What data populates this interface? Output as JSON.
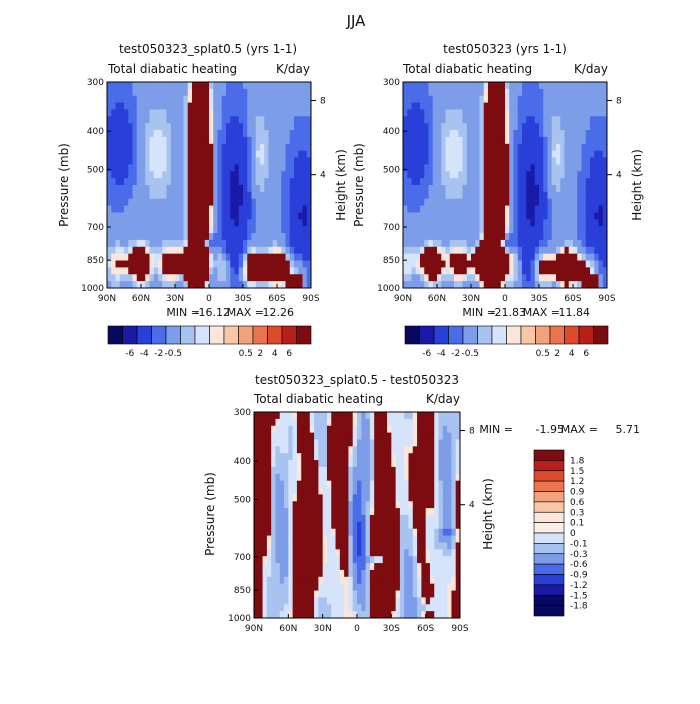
{
  "title": "JJA",
  "colors": {
    "neg": [
      "#08085e",
      "#1a1aa8",
      "#2a3fd8",
      "#4a6ce8",
      "#7d9de8",
      "#a9c3f1",
      "#d6e4fb"
    ],
    "pos": [
      "#fbe7da",
      "#f7c7a8",
      "#f1a27c",
      "#ea744d",
      "#db4b2c",
      "#b81f1a",
      "#7c0c10"
    ],
    "neutral": "#fbe7da",
    "background": "#ffffff"
  },
  "chart_data": [
    {
      "type": "heatmap",
      "title": "test050323_splat0.5  (yrs 1-1)",
      "left_label": "Total diabatic heating",
      "right_label": "K/day",
      "ylabel": "Pressure (mb)",
      "y2label": "Height (km)",
      "yticks": [
        "300",
        "400",
        "500",
        "700",
        "850",
        "1000"
      ],
      "ytick_values": [
        300,
        400,
        500,
        700,
        850,
        1000
      ],
      "y2ticks": [
        "8",
        "4"
      ],
      "xticks": [
        "90N",
        "60N",
        "30N",
        "0",
        "30S",
        "60S",
        "90S"
      ],
      "min_label": "MIN =",
      "min": "-16.12",
      "max_label": "MAX =",
      "max": "12.26",
      "colorbar_labels": [
        "-6",
        "-4",
        "-2",
        "-0.5",
        "0.5",
        "2",
        "4",
        "6"
      ]
    },
    {
      "type": "heatmap",
      "title": "test050323  (yrs 1-1)",
      "left_label": "Total diabatic heating",
      "right_label": "K/day",
      "ylabel": "Pressure (mb)",
      "y2label": "Height (km)",
      "yticks": [
        "300",
        "400",
        "500",
        "700",
        "850",
        "1000"
      ],
      "ytick_values": [
        300,
        400,
        500,
        700,
        850,
        1000
      ],
      "y2ticks": [
        "8",
        "4"
      ],
      "xticks": [
        "90N",
        "60N",
        "30N",
        "0",
        "30S",
        "60S",
        "90S"
      ],
      "min_label": "MIN =",
      "min": "-21.83",
      "max_label": "MAX =",
      "max": "11.84",
      "colorbar_labels": [
        "-6",
        "-4",
        "-2",
        "-0.5",
        "0.5",
        "2",
        "4",
        "6"
      ]
    },
    {
      "type": "heatmap",
      "title": "test050323_splat0.5 - test050323",
      "left_label": "Total diabatic heating",
      "right_label": "K/day",
      "ylabel": "Pressure (mb)",
      "y2label": "Height (km)",
      "yticks": [
        "300",
        "400",
        "500",
        "700",
        "850",
        "1000"
      ],
      "ytick_values": [
        300,
        400,
        500,
        700,
        850,
        1000
      ],
      "y2ticks": [
        "8",
        "4"
      ],
      "xticks": [
        "90N",
        "60N",
        "30N",
        "0",
        "30S",
        "60S",
        "90S"
      ],
      "min_label": "MIN =",
      "min": "-1.95",
      "max_label": "MAX =",
      "max": "5.71",
      "colorbar_labels": [
        "1.8",
        "1.5",
        "1.2",
        "0.9",
        "0.6",
        "0.3",
        "0.1",
        "0",
        "-0.1",
        "-0.3",
        "-0.6",
        "-0.9",
        "-1.2",
        "-1.5",
        "-1.8"
      ]
    }
  ]
}
